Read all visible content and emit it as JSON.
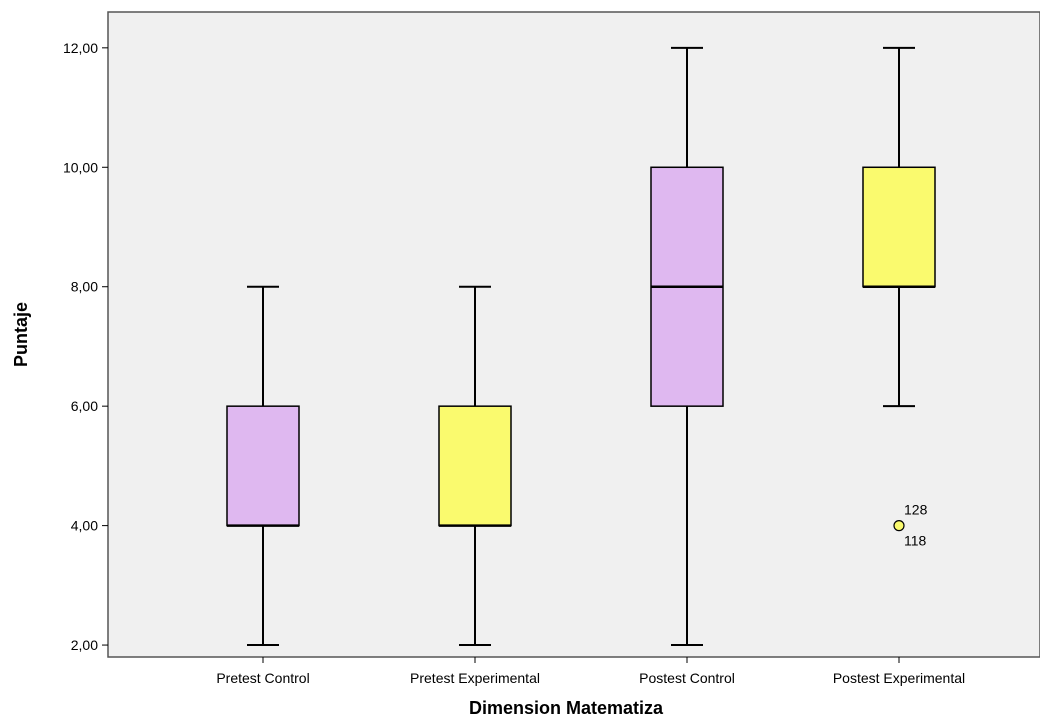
{
  "chart_data": {
    "type": "boxplot",
    "title": "",
    "xlabel": "Dimension Matematiza",
    "ylabel": "Puntaje",
    "ylim": [
      1.8,
      12.6
    ],
    "yticks": [
      2,
      4,
      6,
      8,
      10,
      12
    ],
    "ytick_labels": [
      "2,00",
      "4,00",
      "6,00",
      "8,00",
      "10,00",
      "12,00"
    ],
    "grid": false,
    "categories": [
      "Pretest Control",
      "Pretest Experimental",
      "Postest Control",
      "Postest Experimental"
    ],
    "boxes": [
      {
        "category": "Pretest Control",
        "min": 2,
        "q1": 4,
        "median": 4,
        "q3": 6,
        "max": 8,
        "color": "#dfb8f0"
      },
      {
        "category": "Pretest Experimental",
        "min": 2,
        "q1": 4,
        "median": 4,
        "q3": 6,
        "max": 8,
        "color": "#fafa6e"
      },
      {
        "category": "Postest Control",
        "min": 2,
        "q1": 6,
        "median": 8,
        "q3": 10,
        "max": 12,
        "color": "#dfb8f0"
      },
      {
        "category": "Postest Experimental",
        "min": 6,
        "q1": 8,
        "median": 8,
        "q3": 10,
        "max": 12,
        "color": "#fafa6e"
      }
    ],
    "outliers": [
      {
        "category": "Postest Experimental",
        "value": 4,
        "labels": [
          "128",
          "118"
        ]
      }
    ],
    "colors": {
      "plot_background": "#f0f0f0",
      "frame": "#555555"
    }
  }
}
